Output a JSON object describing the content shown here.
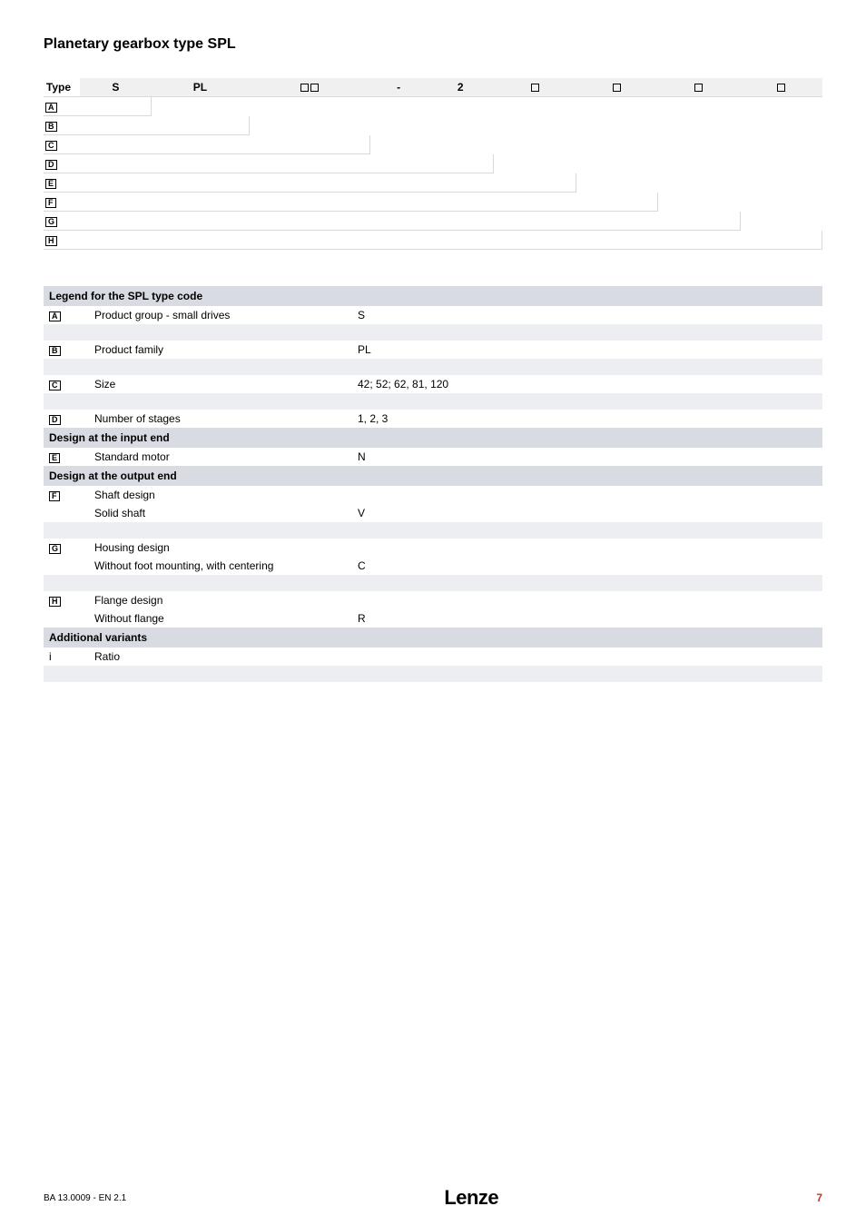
{
  "title": "Planetary gearbox type SPL",
  "code_header": {
    "typeLabel": "Type",
    "cells": [
      "S",
      "PL",
      "☐☐",
      "-",
      "2",
      "☐",
      "☐",
      "☐",
      "☐"
    ]
  },
  "code_rows": [
    "A",
    "B",
    "C",
    "D",
    "E",
    "F",
    "G",
    "H"
  ],
  "legend_title": "Legend for the SPL type code",
  "legend": [
    {
      "type": "header",
      "text": "Legend for the SPL type code"
    },
    {
      "type": "row",
      "icon": "A",
      "name": "Product group - small drives",
      "val": "S"
    },
    {
      "type": "stripe"
    },
    {
      "type": "row",
      "icon": "B",
      "name": "Product family",
      "val": "PL"
    },
    {
      "type": "stripe"
    },
    {
      "type": "row",
      "icon": "C",
      "name": "Size",
      "val": "42; 52; 62, 81, 120"
    },
    {
      "type": "stripe"
    },
    {
      "type": "row",
      "icon": "D",
      "name": "Number of stages",
      "val": "1, 2, 3"
    },
    {
      "type": "header",
      "text": "Design at the input end"
    },
    {
      "type": "row",
      "icon": "E",
      "name": "Standard motor",
      "val": "N"
    },
    {
      "type": "header",
      "text": "Design at the output end"
    },
    {
      "type": "row",
      "icon": "F",
      "name": "Shaft design",
      "val": ""
    },
    {
      "type": "row",
      "icon": "",
      "name": "Solid shaft",
      "val": "V"
    },
    {
      "type": "stripe"
    },
    {
      "type": "row",
      "icon": "G",
      "name": "Housing design",
      "val": ""
    },
    {
      "type": "row",
      "icon": "",
      "name": "Without foot mounting, with centering",
      "val": "C"
    },
    {
      "type": "stripe"
    },
    {
      "type": "row",
      "icon": "H",
      "name": "Flange design",
      "val": ""
    },
    {
      "type": "row",
      "icon": "",
      "name": "Without flange",
      "val": "R"
    },
    {
      "type": "header",
      "text": "Additional variants"
    },
    {
      "type": "row",
      "icon_raw": "i",
      "name": "Ratio",
      "val": ""
    },
    {
      "type": "stripe"
    }
  ],
  "footer": {
    "left": "BA 13.0009 - EN    2.1",
    "brand": "Lenze",
    "page": "7"
  },
  "colors": {
    "header_bg": "#d8dbe2",
    "stripe_bg": "#eceef2",
    "page_bg": "#ffffff",
    "text": "#000000",
    "page_num": "#c0392b",
    "code_head_bg": "#f0f0f0",
    "rule": "#d9d9d9"
  }
}
